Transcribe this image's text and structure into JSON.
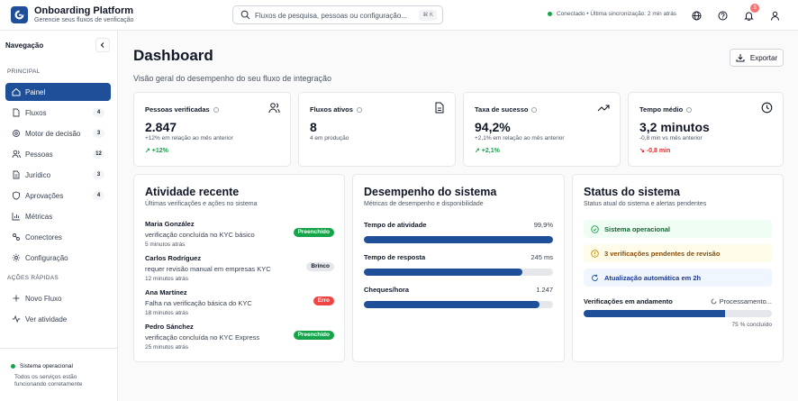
{
  "header": {
    "app_title": "Onboarding Platform",
    "app_subtitle": "Gerencie seus fluxos de verificação",
    "search_placeholder": "Fluxos de pesquisa, pessoas ou configuração...",
    "search_shortcut": "⌘ K",
    "connection_status": "Conectado • Última sincronização: 2 min atrás",
    "notification_count": "3",
    "status_color": "#16a34a",
    "brand_color": "#1e4f98"
  },
  "sidebar": {
    "title": "Navegação",
    "section_main": "PRINCIPAL",
    "items": [
      {
        "label": "Painel",
        "count": "",
        "icon": "home-icon"
      },
      {
        "label": "Fluxos",
        "count": "4",
        "icon": "file-icon"
      },
      {
        "label": "Motor de decisão",
        "count": "3",
        "icon": "gear-icon"
      },
      {
        "label": "Pessoas",
        "count": "12",
        "icon": "users-icon"
      },
      {
        "label": "Jurídico",
        "count": "3",
        "icon": "document-icon"
      },
      {
        "label": "Aprovações",
        "count": "4",
        "icon": "shield-icon"
      },
      {
        "label": "Métricas",
        "count": "",
        "icon": "chart-icon"
      },
      {
        "label": "Conectores",
        "count": "",
        "icon": "plug-icon"
      },
      {
        "label": "Configuração",
        "count": "",
        "icon": "settings-icon"
      }
    ],
    "section_quick": "AÇÕES RÁPIDAS",
    "quick_actions": [
      {
        "label": "Novo Fluxo",
        "icon": "plus-icon"
      },
      {
        "label": "Ver atividade",
        "icon": "activity-icon"
      }
    ],
    "system_status": "Sistema operacional",
    "system_desc": "Todos os serviços estão funcionando corretamente"
  },
  "main": {
    "title": "Dashboard",
    "subtitle": "Visão geral do desempenho do seu fluxo de integração",
    "export_label": "Exportar"
  },
  "kpis": [
    {
      "title": "Pessoas verificadas",
      "value": "2.847",
      "note": "+12% em relação ao mês anterior",
      "delta": "↗ +12%",
      "delta_color": "#16a34a",
      "icon": "users-icon"
    },
    {
      "title": "Fluxos ativos",
      "value": "8",
      "note": "4 em produção",
      "delta": "",
      "delta_color": "#16a34a",
      "icon": "file-icon"
    },
    {
      "title": "Taxa de sucesso",
      "value": "94,2%",
      "note": "+2,1% em relação ao mês anterior",
      "delta": "↗ +2,1%",
      "delta_color": "#16a34a",
      "icon": "trending-up-icon"
    },
    {
      "title": "Tempo médio",
      "value": "3,2 minutos",
      "note": "-0,8 min vs mês anterior",
      "delta": "↘ -0,8 min",
      "delta_color": "#dc2626",
      "icon": "clock-icon"
    }
  ],
  "activity": {
    "title": "Atividade recente",
    "subtitle": "Últimas verificações e ações no sistema",
    "items": [
      {
        "name": "Maria González",
        "desc": "verificação concluída no KYC básico",
        "time": "5 minutos atrás",
        "badge": "Preenchido",
        "badge_bg": "#16a34a",
        "badge_fg": "#ffffff"
      },
      {
        "name": "Carlos Rodríguez",
        "desc": "requer revisão manual em empresas KYC",
        "time": "12 minutos atrás",
        "badge": "Brinco",
        "badge_bg": "#e5e7eb",
        "badge_fg": "#111827"
      },
      {
        "name": "Ana Martínez",
        "desc": "Falha na verificação básica do KYC",
        "time": "18 minutos atrás",
        "badge": "Erro",
        "badge_bg": "#ef4444",
        "badge_fg": "#ffffff"
      },
      {
        "name": "Pedro Sánchez",
        "desc": "verificação concluída no KYC Express",
        "time": "25 minutos atrás",
        "badge": "Preenchido",
        "badge_bg": "#16a34a",
        "badge_fg": "#ffffff"
      }
    ]
  },
  "performance": {
    "title": "Desempenho do sistema",
    "subtitle": "Métricas de desempenho e disponibilidade",
    "metrics": [
      {
        "label": "Tempo de atividade",
        "value": "99,9%",
        "fill": 1.0
      },
      {
        "label": "Tempo de resposta",
        "value": "245 ms",
        "fill": 0.84
      },
      {
        "label": "Cheques/hora",
        "value": "1.247",
        "fill": 0.93
      }
    ]
  },
  "status": {
    "title": "Status do sistema",
    "subtitle": "Status atual do sistema e alertas pendentes",
    "alerts": [
      {
        "label": "Sistema operacional",
        "bg": "#f0fdf4",
        "color": "#16a34a",
        "icon": "check-circle-icon"
      },
      {
        "label": "3 verificações pendentes de revisão",
        "bg": "#fefce8",
        "color": "#ca8a04",
        "icon": "warning-icon"
      },
      {
        "label": "Atualização automática em 2h",
        "bg": "#eff6ff",
        "color": "#1e4f98",
        "icon": "refresh-icon"
      }
    ],
    "progress_label": "Verificações em andamento",
    "progress_status": "Processamento...",
    "progress_pct_text": "75 % concluído",
    "progress_fill": 0.75
  }
}
